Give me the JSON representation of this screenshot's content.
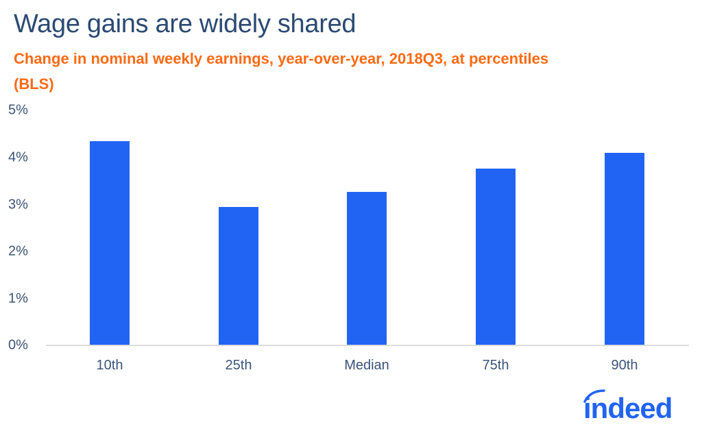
{
  "header": {
    "title": "Wage gains are widely shared",
    "subtitle": "Change in nominal weekly earnings, year-over-year, 2018Q3, at percentiles (BLS)"
  },
  "yaxis": {
    "ticks": [
      "5%",
      "4%",
      "3%",
      "2%",
      "1%",
      "0%"
    ]
  },
  "xaxis": {
    "ticks": [
      "10th",
      "25th",
      "Median",
      "75th",
      "90th"
    ]
  },
  "brand": {
    "logo_text": "indeed",
    "logo_color": "#2164f3"
  },
  "colors": {
    "bar": "#2164f3",
    "title": "#2b4a73",
    "subtitle": "#ff6a13"
  },
  "chart_data": {
    "type": "bar",
    "title": "Wage gains are widely shared",
    "subtitle": "Change in nominal weekly earnings, year-over-year, 2018Q3, at percentiles (BLS)",
    "categories": [
      "10th",
      "25th",
      "Median",
      "75th",
      "90th"
    ],
    "values": [
      4.35,
      2.95,
      3.26,
      3.76,
      4.1
    ],
    "unit": "%",
    "xlabel": "",
    "ylabel": "",
    "ylim": [
      0,
      5
    ],
    "yticks": [
      "0%",
      "1%",
      "2%",
      "3%",
      "4%",
      "5%"
    ],
    "grid": false,
    "legend": "none"
  }
}
